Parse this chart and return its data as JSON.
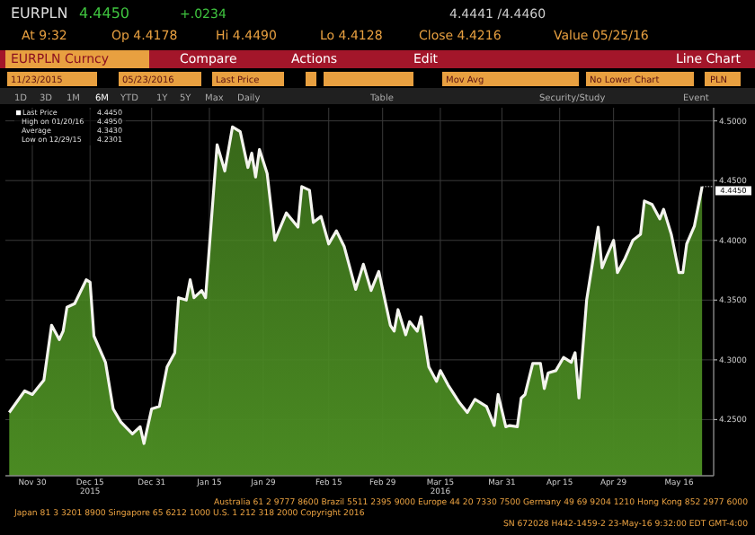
{
  "chart_data": {
    "type": "area",
    "title": "EURPLN",
    "legend": "top left",
    "grid": true,
    "xlim": [
      "2015-11-23",
      "2016-05-25"
    ],
    "ylim": [
      4.203,
      4.511
    ],
    "xticks": [
      {
        "value": "2015-11-30",
        "label": "Nov 30"
      },
      {
        "value": "2015-12-15",
        "label": "Dec 15\n2015"
      },
      {
        "value": "2015-12-31",
        "label": "Dec 31"
      },
      {
        "value": "2016-01-15",
        "label": "Jan 15"
      },
      {
        "value": "2016-01-29",
        "label": "Jan 29"
      },
      {
        "value": "2016-02-15",
        "label": "Feb 15"
      },
      {
        "value": "2016-02-29",
        "label": "Feb 29"
      },
      {
        "value": "2016-03-15",
        "label": "Mar 15\n2016"
      },
      {
        "value": "2016-03-31",
        "label": "Mar 31"
      },
      {
        "value": "2016-04-15",
        "label": "Apr 15"
      },
      {
        "value": "2016-04-29",
        "label": "Apr 29"
      },
      {
        "value": "2016-05-16",
        "label": "May 16"
      }
    ],
    "yticks": [
      {
        "value": 4.25,
        "label": "4.2500"
      },
      {
        "value": 4.3,
        "label": "4.3000"
      },
      {
        "value": 4.35,
        "label": "4.3500"
      },
      {
        "value": 4.4,
        "label": "4.4000"
      },
      {
        "value": 4.45,
        "label": "4.4500"
      },
      {
        "value": 4.5,
        "label": "4.5000"
      }
    ],
    "series": [
      {
        "name": "Last Price",
        "color": "#4a8a22",
        "x": [
          "2015-11-24",
          "2015-11-28",
          "2015-11-30",
          "2015-12-02",
          "2015-12-03",
          "2015-12-05",
          "2015-12-07",
          "2015-12-08",
          "2015-12-09",
          "2015-12-11",
          "2015-12-14",
          "2015-12-15",
          "2015-12-16",
          "2015-12-19",
          "2015-12-21",
          "2015-12-23",
          "2015-12-26",
          "2015-12-28",
          "2015-12-29",
          "2015-12-31",
          "2016-01-02",
          "2016-01-04",
          "2016-01-06",
          "2016-01-07",
          "2016-01-09",
          "2016-01-10",
          "2016-01-11",
          "2016-01-13",
          "2016-01-14",
          "2016-01-17",
          "2016-01-19",
          "2016-01-21",
          "2016-01-23",
          "2016-01-25",
          "2016-01-26",
          "2016-01-27",
          "2016-01-28",
          "2016-01-30",
          "2016-02-01",
          "2016-02-04",
          "2016-02-07",
          "2016-02-08",
          "2016-02-10",
          "2016-02-11",
          "2016-02-13",
          "2016-02-15",
          "2016-02-17",
          "2016-02-19",
          "2016-02-22",
          "2016-02-24",
          "2016-02-26",
          "2016-02-28",
          "2016-03-02",
          "2016-03-03",
          "2016-03-04",
          "2016-03-06",
          "2016-03-07",
          "2016-03-09",
          "2016-03-10",
          "2016-03-12",
          "2016-03-14",
          "2016-03-15",
          "2016-03-17",
          "2016-03-20",
          "2016-03-22",
          "2016-03-24",
          "2016-03-27",
          "2016-03-29",
          "2016-03-30",
          "2016-04-01",
          "2016-04-02",
          "2016-04-04",
          "2016-04-05",
          "2016-04-06",
          "2016-04-08",
          "2016-04-10",
          "2016-04-11",
          "2016-04-12",
          "2016-04-14",
          "2016-04-16",
          "2016-04-18",
          "2016-04-19",
          "2016-04-20",
          "2016-04-22",
          "2016-04-25",
          "2016-04-26",
          "2016-04-27",
          "2016-04-29",
          "2016-04-30",
          "2016-05-02",
          "2016-05-04",
          "2016-05-06",
          "2016-05-07",
          "2016-05-09",
          "2016-05-11",
          "2016-05-12",
          "2016-05-14",
          "2016-05-16",
          "2016-05-17",
          "2016-05-18",
          "2016-05-20",
          "2016-05-22"
        ],
        "values": [
          4.256,
          4.274,
          4.271,
          4.279,
          4.283,
          4.329,
          4.317,
          4.324,
          4.344,
          4.347,
          4.367,
          4.365,
          4.32,
          4.298,
          4.259,
          4.248,
          4.238,
          4.244,
          4.23,
          4.259,
          4.261,
          4.294,
          4.306,
          4.352,
          4.35,
          4.367,
          4.352,
          4.358,
          4.352,
          4.48,
          4.458,
          4.495,
          4.491,
          4.461,
          4.473,
          4.453,
          4.476,
          4.456,
          4.4,
          4.423,
          4.411,
          4.445,
          4.442,
          4.415,
          4.42,
          4.397,
          4.408,
          4.395,
          4.359,
          4.38,
          4.358,
          4.374,
          4.329,
          4.324,
          4.342,
          4.321,
          4.332,
          4.324,
          4.336,
          4.294,
          4.282,
          4.291,
          4.279,
          4.264,
          4.256,
          4.267,
          4.261,
          4.245,
          4.271,
          4.244,
          4.245,
          4.244,
          4.268,
          4.271,
          4.297,
          4.297,
          4.276,
          4.289,
          4.291,
          4.302,
          4.298,
          4.306,
          4.268,
          4.35,
          4.411,
          4.377,
          4.385,
          4.4,
          4.373,
          4.385,
          4.4,
          4.405,
          4.433,
          4.43,
          4.418,
          4.426,
          4.405,
          4.373,
          4.373,
          4.397,
          4.412,
          4.445
        ]
      }
    ],
    "annotations": [
      "4.4450",
      "+.0234",
      "4.4441 /4.4460",
      "At 9:32",
      "Op 4.4178",
      "Hi 4.4490",
      "Lo 4.4128",
      "Close 4.4216",
      "Value 05/25/16",
      "EURPLN Curncy",
      "Compare",
      "Actions",
      "Edit",
      "Line Chart",
      "11/23/2015",
      "05/23/2016",
      "Last Price",
      "Mov Avg",
      "No Lower Chart",
      "PLN",
      "1D",
      "3D",
      "1M",
      "6M",
      "YTD",
      "1Y",
      "5Y",
      "Max",
      "Daily",
      "Table",
      "Security/Study",
      "Event",
      "4.4450",
      "High on 01/20/16",
      "4.4950",
      "Average",
      "4.3430",
      "Low on 12/29/15",
      "4.2301",
      {
        "text": "4.4450",
        "x": "2016-05-22",
        "y": 4.445
      },
      "Australia 61 2 9777 8600 Brazil 5511 2395 9000 Europe 44 20 7330 7500 Germany 49 69 9204 1210 Hong Kong 852 2977 6000",
      "Japan 81 3 3201 8900     Singapore 65 6212 1000     U.S. 1 212 318 2000     Copyright 2016",
      "SN 672028 H442-1459-2 23-May-16  9:32:00 EDT  GMT-4:00"
    ]
  }
}
